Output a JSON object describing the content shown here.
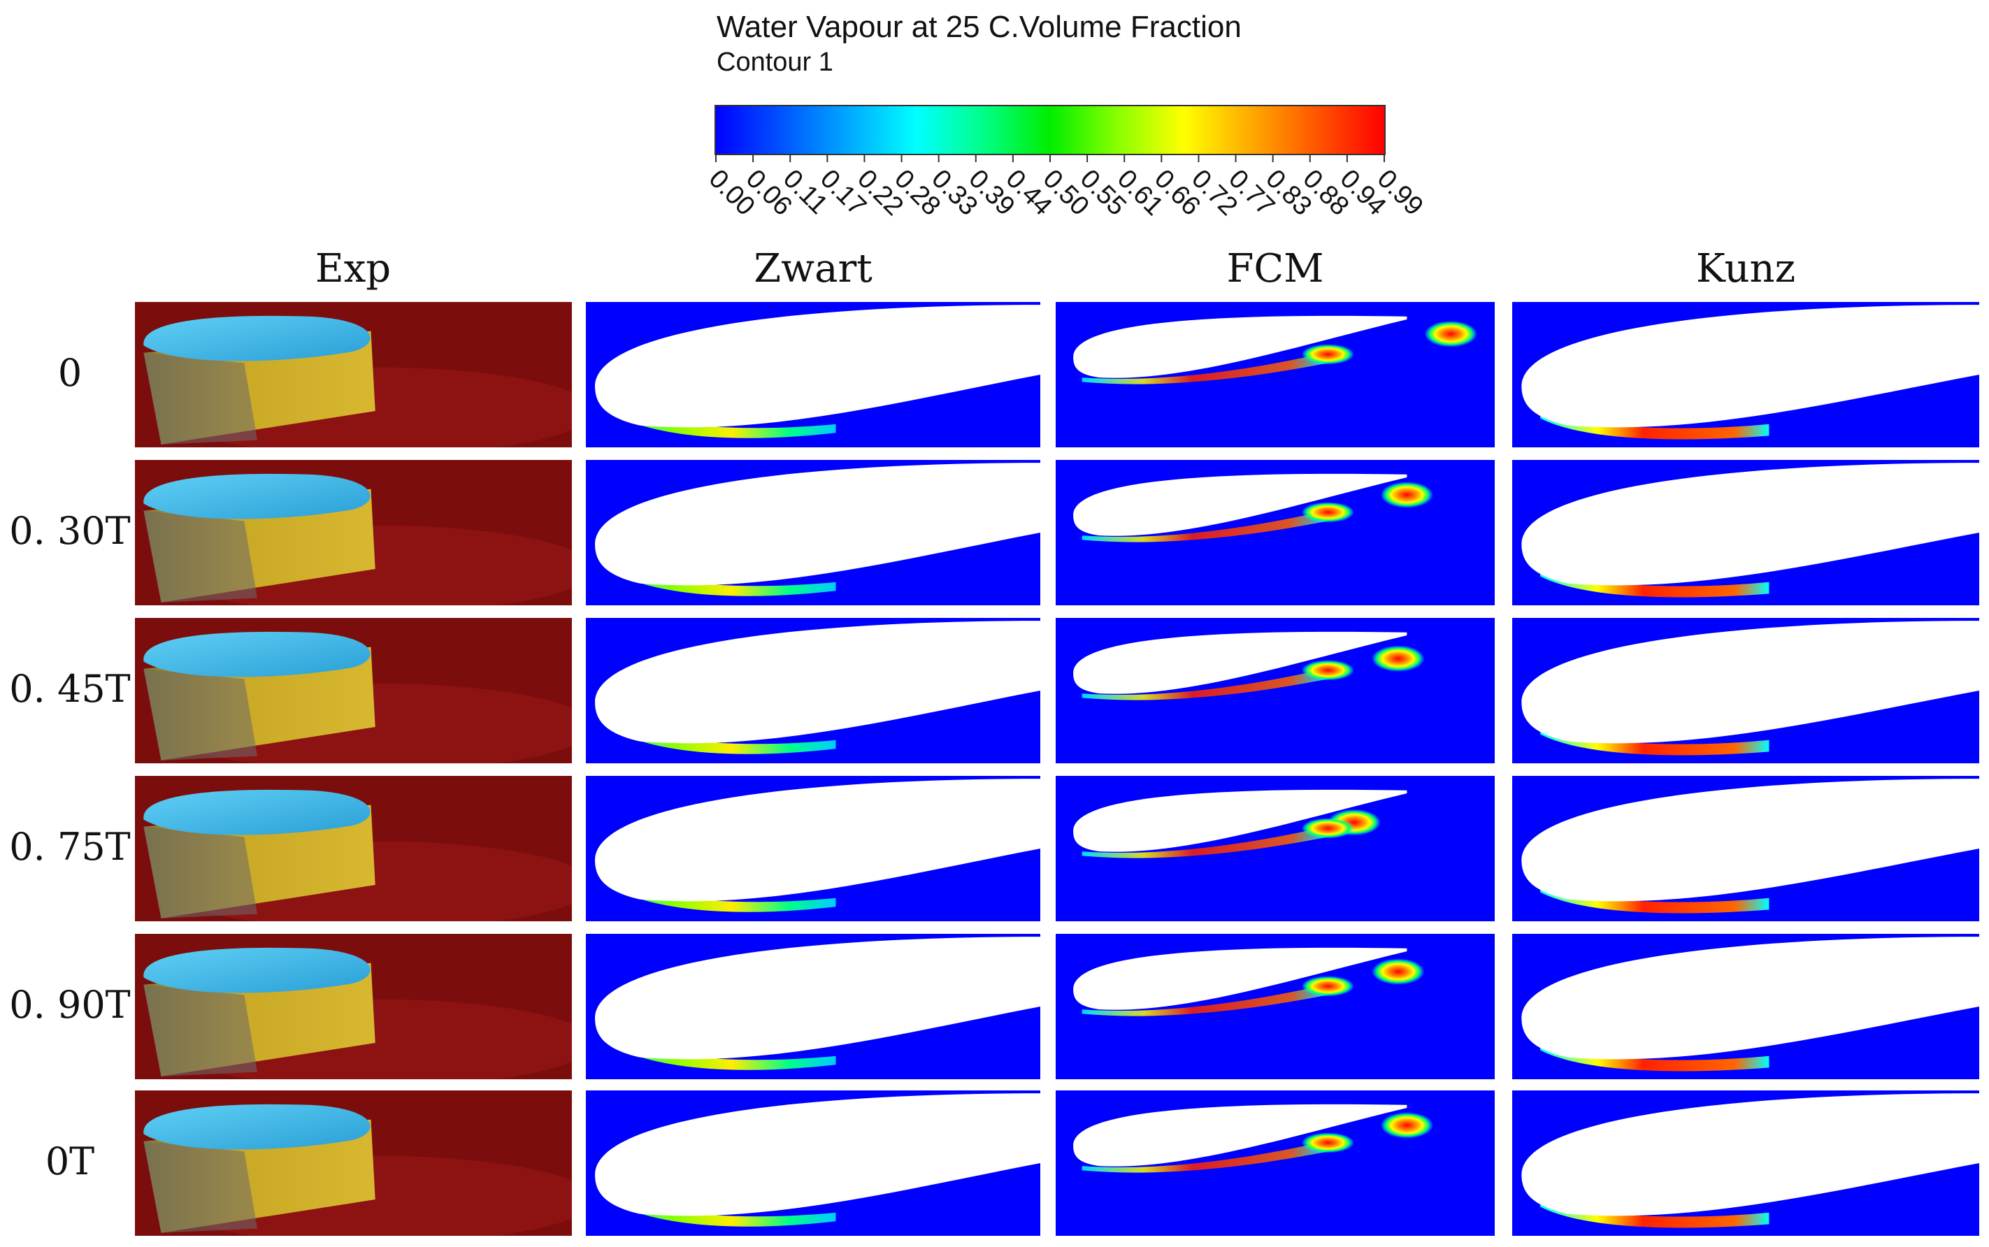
{
  "legend": {
    "title": "Water Vapour at 25 C.Volume Fraction",
    "subtitle": "Contour 1",
    "ticks": [
      "0.00",
      "0.06",
      "0.11",
      "0.17",
      "0.22",
      "0.28",
      "0.33",
      "0.39",
      "0.44",
      "0.50",
      "0.55",
      "0.61",
      "0.66",
      "0.72",
      "0.77",
      "0.83",
      "0.88",
      "0.94",
      "0.99"
    ]
  },
  "columns": [
    "Exp",
    "Zwart",
    "FCM",
    "Kunz"
  ],
  "rows": [
    "0",
    "0. 30T",
    "0. 45T",
    "0. 75T",
    "0. 90T",
    "0T"
  ],
  "colors": {
    "background": "#0000ff",
    "vapour_high": "#ff0000",
    "foil": "#ffffff",
    "exp_cavity": "#30b8e8",
    "exp_body": "#c8a820",
    "exp_bg": "#8a1010"
  }
}
